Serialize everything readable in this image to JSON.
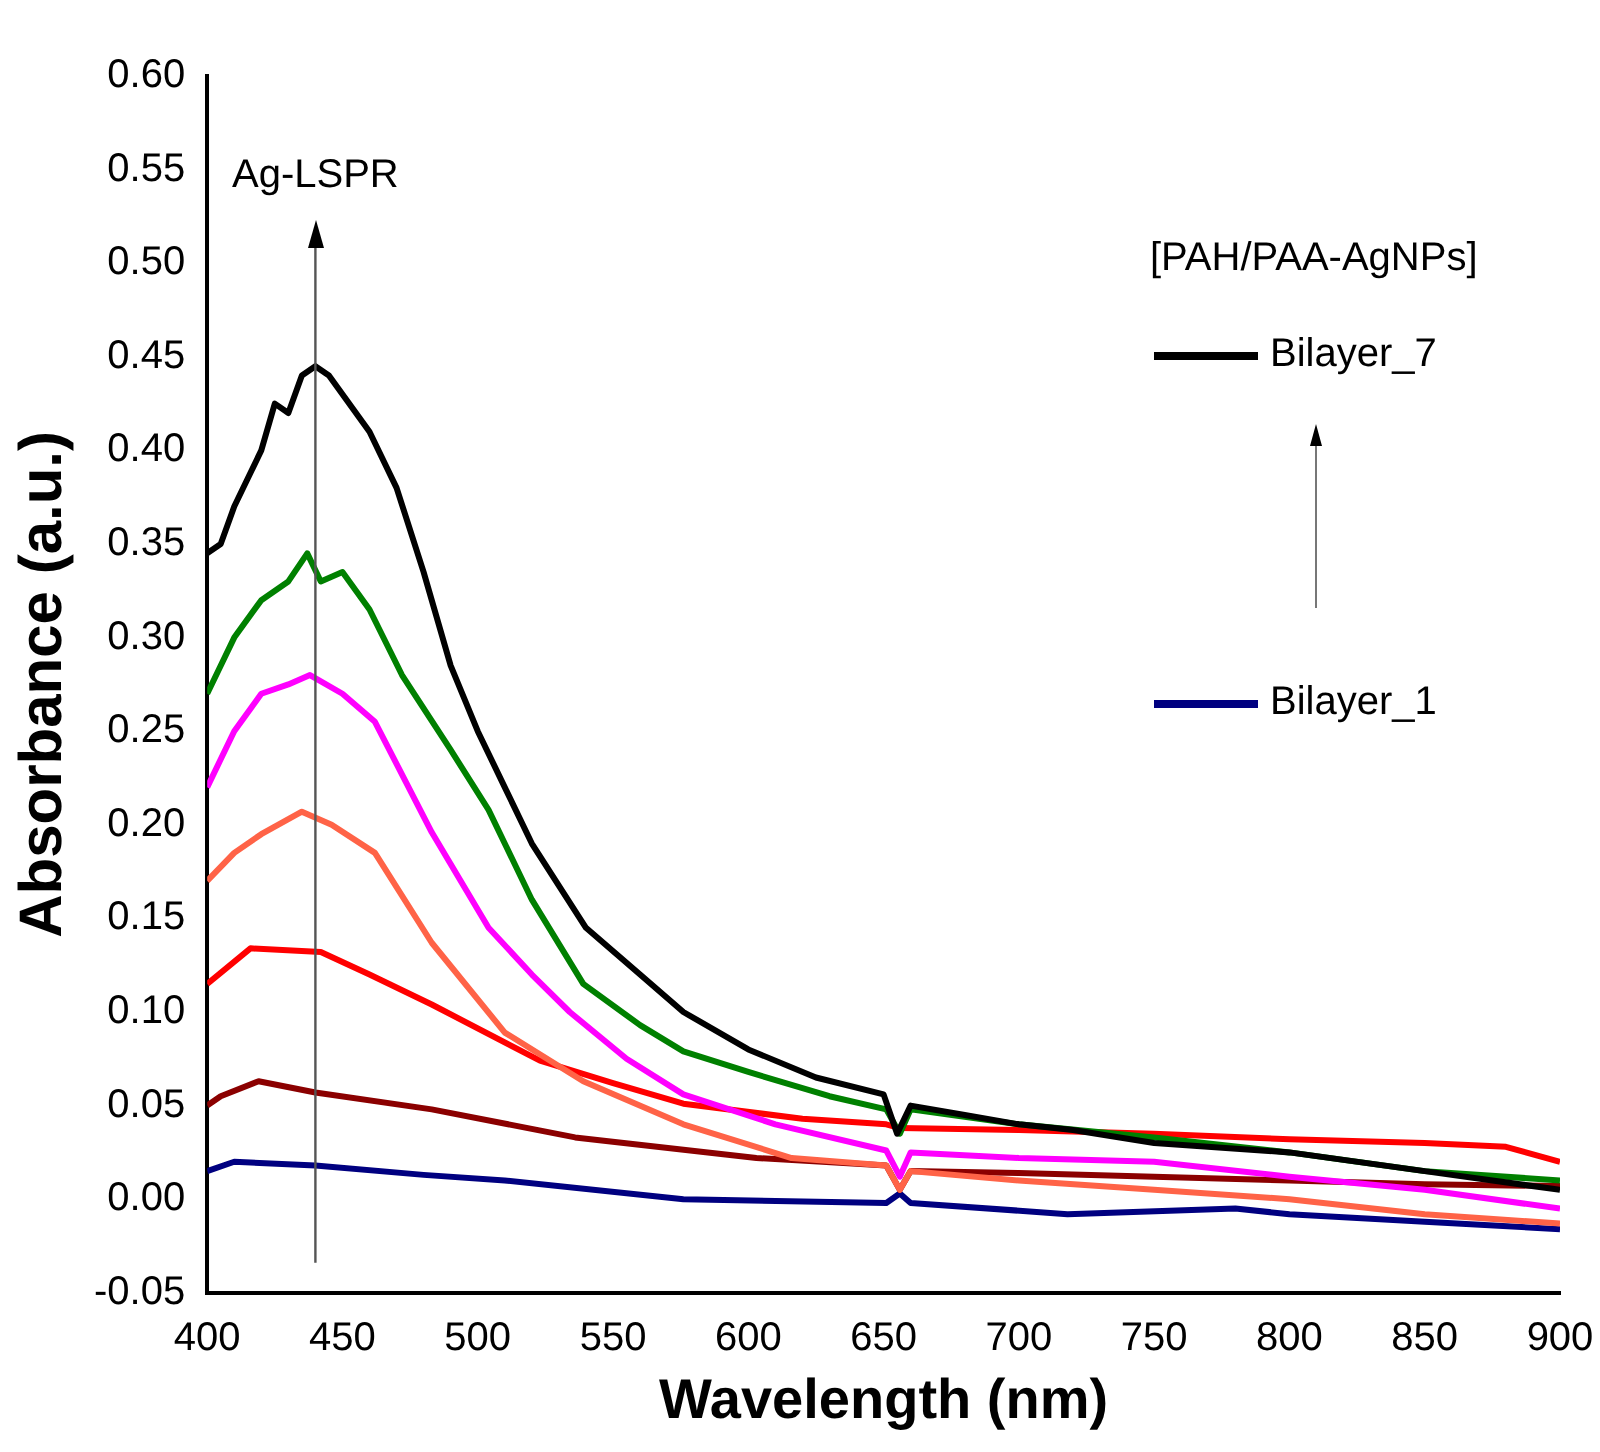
{
  "chart_data": {
    "type": "line",
    "xlabel": "Wavelength (nm)",
    "ylabel": "Absorbance (a.u.)",
    "legend_title": "[PAH/PAA-AgNPs]",
    "legend": "top right",
    "grid": false,
    "marker": "none",
    "line_style": "solid",
    "xlim": [
      400,
      900
    ],
    "xticks": [
      400,
      450,
      500,
      550,
      600,
      650,
      700,
      750,
      800,
      850,
      900
    ],
    "ylim": [
      -0.05,
      0.6
    ],
    "yticks": [
      {
        "value": -0.05,
        "label": "-0.05"
      },
      {
        "value": 0,
        "label": "0.00"
      },
      {
        "value": 0.05,
        "label": "0.05"
      },
      {
        "value": 0.1,
        "label": "0.10"
      },
      {
        "value": 0.15,
        "label": "0.15"
      },
      {
        "value": 0.2,
        "label": "0.20"
      },
      {
        "value": 0.25,
        "label": "0.25"
      },
      {
        "value": 0.3,
        "label": "0.30"
      },
      {
        "value": 0.35,
        "label": "0.35"
      },
      {
        "value": 0.4,
        "label": "0.40"
      },
      {
        "value": 0.45,
        "label": "0.45"
      },
      {
        "value": 0.5,
        "label": "0.50"
      },
      {
        "value": 0.55,
        "label": "0.55"
      },
      {
        "value": 0.6,
        "label": "0.60"
      }
    ],
    "ref_lines": [
      {
        "axis": "x",
        "value": 440,
        "label": "Ag-LSPR",
        "color": "#555555"
      }
    ],
    "series": [
      {
        "name": "Bilayer_7",
        "color": "#000000",
        "x": [
          400,
          405,
          410,
          420,
          425,
          430,
          435,
          440,
          445,
          450,
          460,
          470,
          480,
          490,
          500,
          510,
          520,
          540,
          560,
          576,
          600,
          625,
          650,
          655,
          660,
          680,
          700,
          720,
          750,
          800,
          850,
          900
        ],
        "values": [
          0.345,
          0.35,
          0.37,
          0.4,
          0.425,
          0.42,
          0.44,
          0.445,
          0.44,
          0.43,
          0.41,
          0.38,
          0.335,
          0.285,
          0.25,
          0.22,
          0.19,
          0.145,
          0.12,
          0.1,
          0.08,
          0.065,
          0.056,
          0.035,
          0.05,
          0.045,
          0.04,
          0.037,
          0.03,
          0.025,
          0.015,
          0.005
        ]
      },
      {
        "color": "#008000",
        "x": [
          400,
          410,
          420,
          430,
          437,
          442,
          450,
          460,
          472,
          490,
          504,
          520,
          539,
          560,
          576,
          600,
          630,
          651,
          656,
          660,
          700,
          750,
          800,
          850,
          900
        ],
        "values": [
          0.27,
          0.3,
          0.32,
          0.33,
          0.345,
          0.33,
          0.335,
          0.315,
          0.28,
          0.24,
          0.208,
          0.16,
          0.115,
          0.093,
          0.079,
          0.068,
          0.055,
          0.048,
          0.035,
          0.048,
          0.04,
          0.033,
          0.025,
          0.015,
          0.01
        ]
      },
      {
        "color": "#ff00ff",
        "x": [
          400,
          410,
          420,
          430,
          438,
          450,
          462,
          483,
          504,
          520,
          534,
          555,
          576,
          610,
          651,
          656,
          660,
          700,
          750,
          800,
          850,
          900
        ],
        "values": [
          0.22,
          0.25,
          0.27,
          0.275,
          0.28,
          0.27,
          0.255,
          0.196,
          0.145,
          0.12,
          0.1,
          0.075,
          0.056,
          0.04,
          0.026,
          0.012,
          0.025,
          0.022,
          0.02,
          0.012,
          0.005,
          -0.005
        ]
      },
      {
        "color": "#ff6347",
        "x": [
          400,
          410,
          420,
          435,
          446,
          462,
          483,
          510,
          539,
          576,
          616,
          651,
          656,
          660,
          700,
          750,
          800,
          850,
          900
        ],
        "values": [
          0.17,
          0.185,
          0.195,
          0.207,
          0.2,
          0.185,
          0.137,
          0.089,
          0.063,
          0.04,
          0.022,
          0.018,
          0.005,
          0.015,
          0.01,
          0.005,
          0,
          -0.008,
          -0.013
        ]
      },
      {
        "color": "#ff0000",
        "x": [
          400,
          416,
          442,
          460,
          483,
          523,
          550,
          576,
          620,
          651,
          656,
          700,
          750,
          800,
          850,
          880,
          900
        ],
        "values": [
          0.115,
          0.134,
          0.132,
          0.12,
          0.104,
          0.074,
          0.062,
          0.051,
          0.043,
          0.04,
          0.038,
          0.037,
          0.035,
          0.032,
          0.03,
          0.028,
          0.02
        ]
      },
      {
        "color": "#8b0000",
        "x": [
          400,
          405,
          419,
          440,
          483,
          536,
          603,
          651,
          656,
          660,
          700,
          750,
          800,
          850,
          900
        ],
        "values": [
          0.05,
          0.055,
          0.063,
          0.057,
          0.048,
          0.033,
          0.022,
          0.018,
          0.005,
          0.015,
          0.014,
          0.012,
          0.01,
          0.008,
          0.007
        ]
      },
      {
        "name": "Bilayer_1",
        "color": "#000080",
        "x": [
          400,
          410,
          440,
          480,
          510,
          576,
          651,
          656,
          660,
          718,
          780,
          800,
          850,
          900
        ],
        "values": [
          0.015,
          0.02,
          0.018,
          0.013,
          0.01,
          0,
          -0.002,
          0.003,
          -0.002,
          -0.008,
          -0.005,
          -0.008,
          -0.012,
          -0.016
        ]
      }
    ]
  }
}
